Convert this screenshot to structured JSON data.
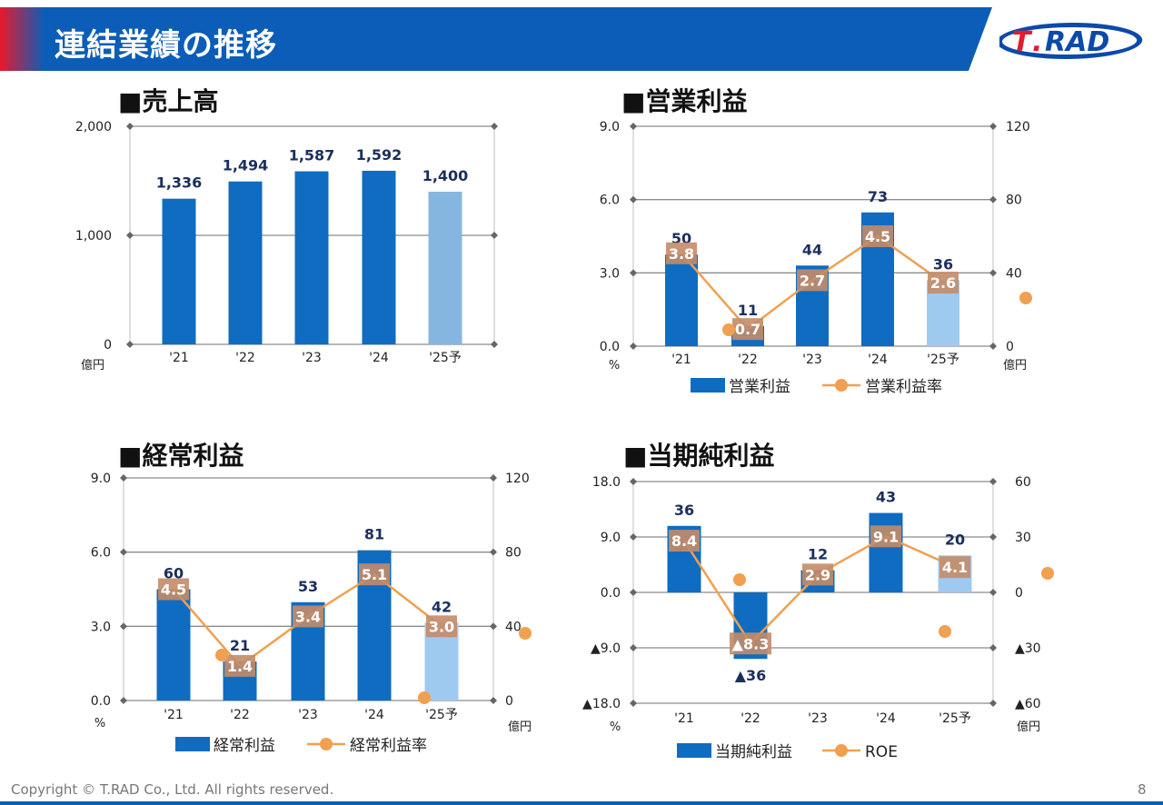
{
  "page": {
    "title": "連結業績の推移",
    "footer": "Copyright © T.RAD Co., Ltd. All rights reserved.",
    "page_number": "8",
    "logo_text": "T.RAD",
    "colors": {
      "header_blue": "#0b5db8",
      "accent_red": "#e8192c",
      "bar": "#0f6cc0",
      "bar_forecast": "#85b6e0",
      "bar_forecast2": "#9fcaf0",
      "line": "#f0a050",
      "label_box": "#c38c68"
    }
  },
  "chart_data": [
    {
      "id": "sales",
      "type": "bar",
      "title": "■売上高",
      "categories": [
        "'21",
        "'22",
        "'23",
        "'24",
        "'25予"
      ],
      "values": [
        1336,
        1494,
        1587,
        1592,
        1400
      ],
      "value_labels": [
        "1,336",
        "1,494",
        "1,587",
        "1,592",
        "1,400"
      ],
      "y_ticks": [
        "2,000",
        "1,000",
        "0"
      ],
      "ylim": [
        0,
        2000
      ],
      "y_unit": "億円",
      "forecast_index": 4,
      "grid": true
    },
    {
      "id": "operating_income",
      "type": "bar+line",
      "title": "■営業利益",
      "categories": [
        "'21",
        "'22",
        "'23",
        "'24",
        "'25予"
      ],
      "bar_values": [
        50,
        11,
        44,
        73,
        36
      ],
      "bar_labels": [
        "50",
        "11",
        "44",
        "73",
        "36"
      ],
      "line_values": [
        3.8,
        0.7,
        2.7,
        4.5,
        2.6
      ],
      "line_labels": [
        "3.8",
        "0.7",
        "2.7",
        "4.5",
        "2.6"
      ],
      "left_ticks": [
        "9.0",
        "6.0",
        "3.0",
        "0.0"
      ],
      "left_lim": [
        0,
        9
      ],
      "right_ticks": [
        "120",
        "80",
        "40",
        "0"
      ],
      "right_lim": [
        0,
        120
      ],
      "left_unit": "%",
      "right_unit": "億円",
      "legend": [
        "営業利益",
        "営業利益率"
      ],
      "forecast_index": 4
    },
    {
      "id": "ordinary_income",
      "type": "bar+line",
      "title": "■経常利益",
      "categories": [
        "'21",
        "'22",
        "'23",
        "'24",
        "'25予"
      ],
      "bar_values": [
        60,
        21,
        53,
        81,
        42
      ],
      "bar_labels": [
        "60",
        "21",
        "53",
        "81",
        "42"
      ],
      "line_values": [
        4.5,
        1.4,
        3.4,
        5.1,
        3.0
      ],
      "line_labels": [
        "4.5",
        "1.4",
        "3.4",
        "5.1",
        "3.0"
      ],
      "left_ticks": [
        "9.0",
        "6.0",
        "3.0",
        "0.0"
      ],
      "left_lim": [
        0,
        9
      ],
      "right_ticks": [
        "120",
        "80",
        "40",
        "0"
      ],
      "right_lim": [
        0,
        120
      ],
      "left_unit": "%",
      "right_unit": "億円",
      "legend": [
        "経常利益",
        "経常利益率"
      ],
      "forecast_index": 4
    },
    {
      "id": "net_income",
      "type": "bar+line",
      "title": "■当期純利益",
      "categories": [
        "'21",
        "'22",
        "'23",
        "'24",
        "'25予"
      ],
      "bar_values": [
        36,
        -36,
        12,
        43,
        20
      ],
      "bar_labels": [
        "36",
        "▲36",
        "12",
        "43",
        "20"
      ],
      "line_values": [
        8.4,
        -8.3,
        2.9,
        9.1,
        4.1
      ],
      "line_labels": [
        "8.4",
        "▲8.3",
        "2.9",
        "9.1",
        "4.1"
      ],
      "left_ticks": [
        "18.0",
        "9.0",
        "0.0",
        "▲9.0",
        "▲18.0"
      ],
      "left_lim": [
        -18,
        18
      ],
      "right_ticks": [
        "60",
        "30",
        "0",
        "▲30",
        "▲60"
      ],
      "right_lim": [
        -60,
        60
      ],
      "left_unit": "%",
      "right_unit": "億円",
      "legend": [
        "当期純利益",
        "ROE"
      ],
      "forecast_index": 4
    }
  ]
}
